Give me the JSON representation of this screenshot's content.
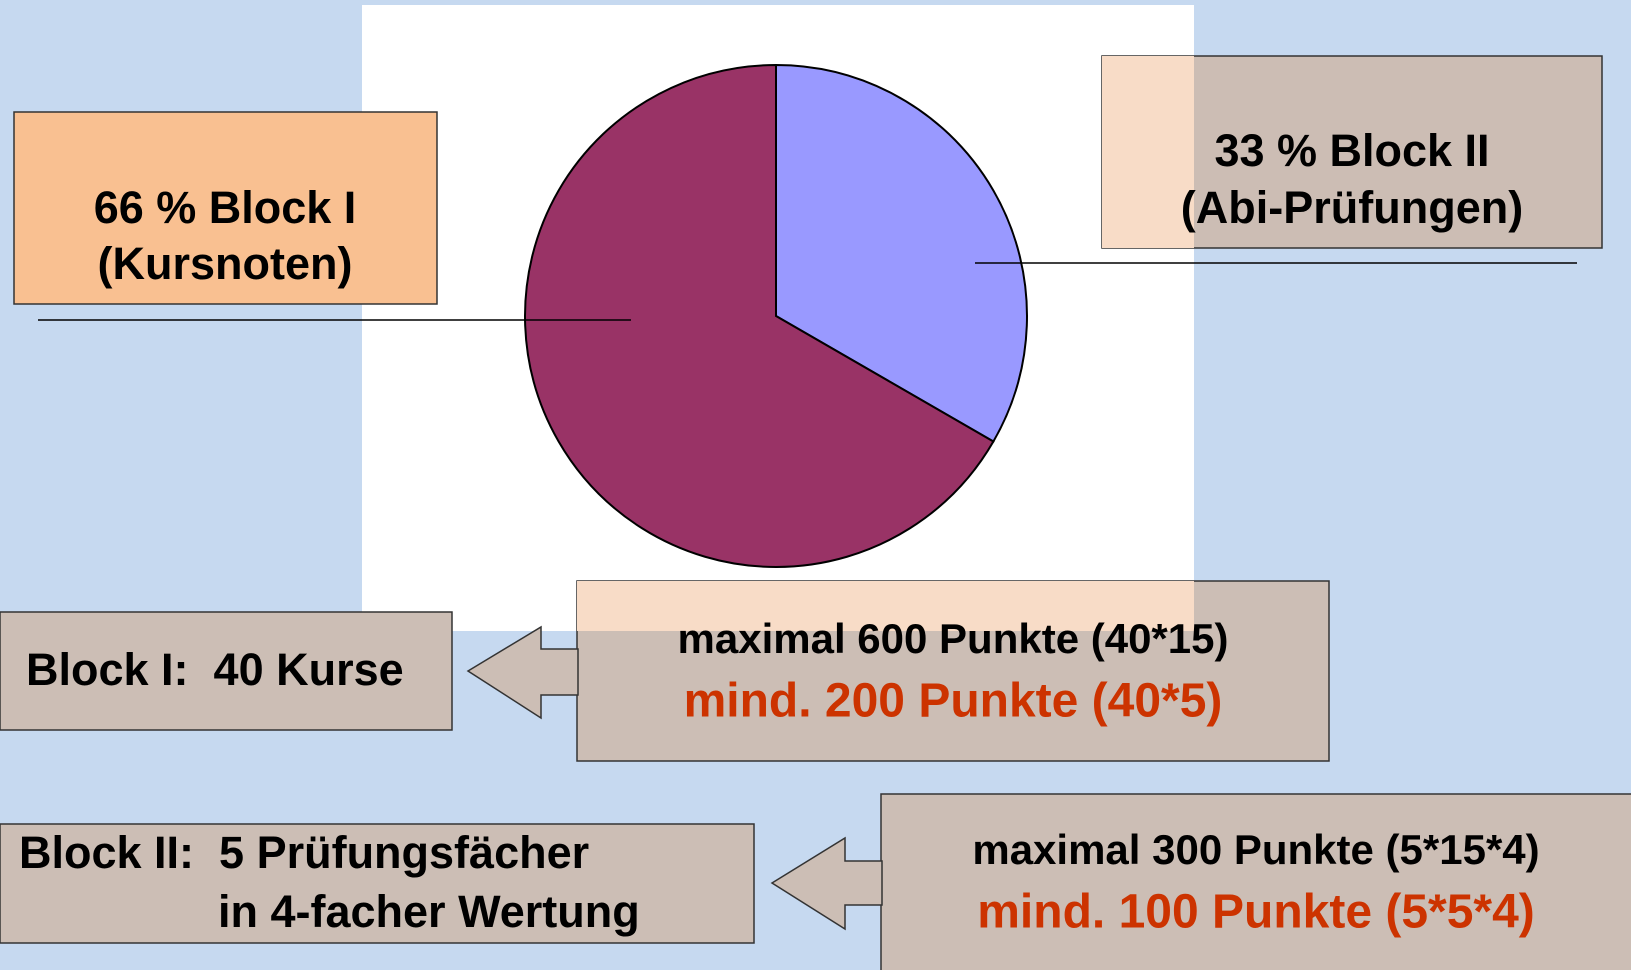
{
  "chart_data": {
    "type": "pie",
    "values": [
      66,
      33
    ],
    "value_labels": [
      "66 % Block I",
      "33 % Block II"
    ],
    "sublabels": [
      "(Kursnoten)",
      "(Abi-Prüfungen)"
    ],
    "colors": [
      "#993366",
      "#9999ff"
    ]
  },
  "blocks": [
    {
      "label": [
        "Block I:  40 Kurse"
      ],
      "max": "maximal 600 Punkte (40*15)",
      "min": "mind. 200 Punkte (40*5)"
    },
    {
      "label": [
        "Block II:  5 Prüfungsfächer",
        "in 4-facher Wertung"
      ],
      "max": "maximal 300 Punkte (5*15*4)",
      "min": "mind. 100 Punkte (5*5*4)"
    }
  ]
}
